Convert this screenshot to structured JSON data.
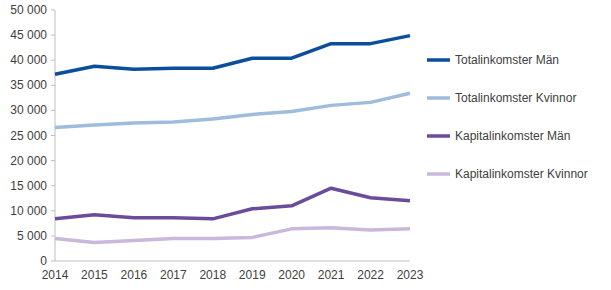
{
  "chart_data": {
    "type": "line",
    "categories": [
      "2014",
      "2015",
      "2016",
      "2017",
      "2018",
      "2019",
      "2020",
      "2021",
      "2022",
      "2023"
    ],
    "series": [
      {
        "name": "Totalinkomster Män",
        "color": "#0b4f9c",
        "values": [
          37200,
          38800,
          38200,
          38400,
          38400,
          40400,
          40400,
          43300,
          43300,
          44900
        ]
      },
      {
        "name": "Totalinkomster Kvinnor",
        "color": "#9fbcdc",
        "values": [
          26600,
          27100,
          27500,
          27700,
          28300,
          29200,
          29800,
          31000,
          31600,
          33400
        ]
      },
      {
        "name": "Kapitalinkomster Män",
        "color": "#6b4c9a",
        "values": [
          8400,
          9200,
          8600,
          8600,
          8400,
          10400,
          11000,
          14500,
          12600,
          12000
        ]
      },
      {
        "name": "Kapitalinkomster Kvinnor",
        "color": "#c9b8dc",
        "values": [
          4500,
          3700,
          4100,
          4500,
          4500,
          4700,
          6400,
          6600,
          6200,
          6400
        ]
      }
    ],
    "ylim": [
      0,
      50000
    ],
    "yticks": [
      0,
      {
        "value": 5000,
        "label": "5 000"
      },
      {
        "value": 10000,
        "label": "10 000"
      },
      {
        "value": 15000,
        "label": "15 000"
      },
      {
        "value": 20000,
        "label": "20 000"
      },
      {
        "value": 25000,
        "label": "25 000"
      },
      {
        "value": 30000,
        "label": "30 000"
      },
      {
        "value": 35000,
        "label": "35 000"
      },
      {
        "value": 40000,
        "label": "40 000"
      },
      {
        "value": 45000,
        "label": "45 000"
      },
      {
        "value": 50000,
        "label": "50 000"
      }
    ],
    "grid": false,
    "legend": "right"
  }
}
